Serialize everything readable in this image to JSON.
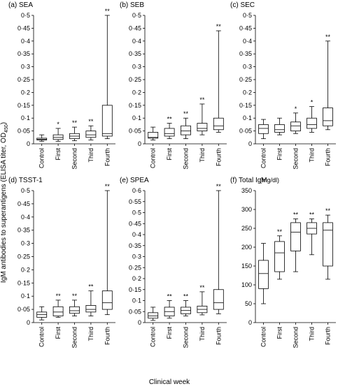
{
  "chart_data": [
    {
      "type": "box",
      "title": "(a) SEA",
      "categories": [
        "Control",
        "First",
        "Second",
        "Third",
        "Fourth"
      ],
      "boxes": [
        {
          "low": 0.01,
          "q1": 0.015,
          "median": 0.018,
          "q3": 0.022,
          "high": 0.035
        },
        {
          "low": 0.01,
          "q1": 0.017,
          "median": 0.025,
          "q3": 0.035,
          "high": 0.06
        },
        {
          "low": 0.012,
          "q1": 0.02,
          "median": 0.03,
          "q3": 0.04,
          "high": 0.065
        },
        {
          "low": 0.015,
          "q1": 0.025,
          "median": 0.035,
          "q3": 0.05,
          "high": 0.07
        },
        {
          "low": 0.02,
          "q1": 0.03,
          "median": 0.04,
          "q3": 0.15,
          "high": 0.5
        }
      ],
      "significance": [
        null,
        "*",
        "**",
        "**",
        "**"
      ],
      "ylim": [
        0,
        0.5
      ],
      "yticks": [
        0,
        {
          "value": 0.05,
          "label": "0·05"
        },
        {
          "value": 0.1,
          "label": "0·1"
        },
        {
          "value": 0.15,
          "label": "0·15"
        },
        {
          "value": 0.2,
          "label": "0·2"
        },
        {
          "value": 0.25,
          "label": "0·25"
        },
        {
          "value": 0.3,
          "label": "0·3"
        },
        {
          "value": 0.35,
          "label": "0·35"
        },
        {
          "value": 0.4,
          "label": "0·4"
        },
        {
          "value": 0.45,
          "label": "0·45"
        },
        {
          "value": 0.5,
          "label": "0·5"
        }
      ]
    },
    {
      "type": "box",
      "title": "(b) SEB",
      "categories": [
        "Control",
        "First",
        "Second",
        "Third",
        "Fourth"
      ],
      "boxes": [
        {
          "low": 0.015,
          "q1": 0.022,
          "median": 0.025,
          "q3": 0.045,
          "high": 0.065
        },
        {
          "low": 0.02,
          "q1": 0.03,
          "median": 0.04,
          "q3": 0.06,
          "high": 0.08
        },
        {
          "low": 0.02,
          "q1": 0.035,
          "median": 0.05,
          "q3": 0.07,
          "high": 0.1
        },
        {
          "low": 0.035,
          "q1": 0.05,
          "median": 0.06,
          "q3": 0.08,
          "high": 0.155
        },
        {
          "low": 0.045,
          "q1": 0.055,
          "median": 0.07,
          "q3": 0.1,
          "high": 0.44
        }
      ],
      "significance": [
        null,
        "**",
        "**",
        "**",
        "**"
      ],
      "ylim": [
        0,
        0.5
      ],
      "yticks": [
        0,
        {
          "value": 0.05,
          "label": "0·05"
        },
        {
          "value": 0.1,
          "label": "0·1"
        },
        {
          "value": 0.15,
          "label": "0·15"
        },
        {
          "value": 0.2,
          "label": "0·2"
        },
        {
          "value": 0.25,
          "label": "0·25"
        },
        {
          "value": 0.3,
          "label": "0·3"
        },
        {
          "value": 0.35,
          "label": "0·35"
        },
        {
          "value": 0.4,
          "label": "0·4"
        },
        {
          "value": 0.45,
          "label": "0·45"
        },
        {
          "value": 0.5,
          "label": "0·5"
        }
      ]
    },
    {
      "type": "box",
      "title": "(c) SEC",
      "categories": [
        "Control",
        "First",
        "Second",
        "Third",
        "Fourth"
      ],
      "boxes": [
        {
          "low": 0.02,
          "q1": 0.04,
          "median": 0.06,
          "q3": 0.075,
          "high": 0.095
        },
        {
          "low": 0.035,
          "q1": 0.045,
          "median": 0.055,
          "q3": 0.075,
          "high": 0.1
        },
        {
          "low": 0.04,
          "q1": 0.05,
          "median": 0.07,
          "q3": 0.085,
          "high": 0.12
        },
        {
          "low": 0.045,
          "q1": 0.06,
          "median": 0.075,
          "q3": 0.1,
          "high": 0.145
        },
        {
          "low": 0.055,
          "q1": 0.07,
          "median": 0.09,
          "q3": 0.14,
          "high": 0.4
        }
      ],
      "significance": [
        null,
        null,
        "*",
        "*",
        "**"
      ],
      "ylim": [
        0,
        0.5
      ],
      "yticks": [
        0,
        {
          "value": 0.05,
          "label": "0·05"
        },
        {
          "value": 0.1,
          "label": "0·1"
        },
        {
          "value": 0.15,
          "label": "0·15"
        },
        {
          "value": 0.2,
          "label": "0·2"
        },
        {
          "value": 0.25,
          "label": "0·25"
        },
        {
          "value": 0.3,
          "label": "0·3"
        },
        {
          "value": 0.35,
          "label": "0·35"
        },
        {
          "value": 0.4,
          "label": "0·4"
        },
        {
          "value": 0.45,
          "label": "0·45"
        },
        {
          "value": 0.5,
          "label": "0·5"
        }
      ]
    },
    {
      "type": "box",
      "title": "(d) TSST-1",
      "categories": [
        "Control",
        "First",
        "Second",
        "Third",
        "Fourth"
      ],
      "boxes": [
        {
          "low": 0.01,
          "q1": 0.02,
          "median": 0.03,
          "q3": 0.04,
          "high": 0.06
        },
        {
          "low": 0.02,
          "q1": 0.025,
          "median": 0.04,
          "q3": 0.06,
          "high": 0.085
        },
        {
          "low": 0.025,
          "q1": 0.035,
          "median": 0.045,
          "q3": 0.06,
          "high": 0.085
        },
        {
          "low": 0.025,
          "q1": 0.04,
          "median": 0.05,
          "q3": 0.065,
          "high": 0.12
        },
        {
          "low": 0.03,
          "q1": 0.05,
          "median": 0.075,
          "q3": 0.12,
          "high": 0.5
        }
      ],
      "significance": [
        null,
        "**",
        "**",
        "**",
        "**"
      ],
      "ylim": [
        0,
        0.5
      ],
      "yticks": [
        0,
        {
          "value": 0.05,
          "label": "0·05"
        },
        {
          "value": 0.1,
          "label": "0·1"
        },
        {
          "value": 0.15,
          "label": "0·15"
        },
        {
          "value": 0.2,
          "label": "0·2"
        },
        {
          "value": 0.25,
          "label": "0·25"
        },
        {
          "value": 0.3,
          "label": "0·3"
        },
        {
          "value": 0.35,
          "label": "0·35"
        },
        {
          "value": 0.4,
          "label": "0·4"
        },
        {
          "value": 0.45,
          "label": "0·45"
        },
        {
          "value": 0.5,
          "label": "0·5"
        }
      ]
    },
    {
      "type": "box",
      "title": "(e) SPEA",
      "categories": [
        "Control",
        "First",
        "Second",
        "Third",
        "Fourth"
      ],
      "boxes": [
        {
          "low": 0.01,
          "q1": 0.02,
          "median": 0.03,
          "q3": 0.045,
          "high": 0.07
        },
        {
          "low": 0.02,
          "q1": 0.03,
          "median": 0.05,
          "q3": 0.07,
          "high": 0.1
        },
        {
          "low": 0.03,
          "q1": 0.04,
          "median": 0.055,
          "q3": 0.07,
          "high": 0.1
        },
        {
          "low": 0.035,
          "q1": 0.045,
          "median": 0.06,
          "q3": 0.075,
          "high": 0.14
        },
        {
          "low": 0.04,
          "q1": 0.06,
          "median": 0.09,
          "q3": 0.15,
          "high": 0.6
        }
      ],
      "significance": [
        null,
        "**",
        "**",
        "**",
        "**"
      ],
      "ylim": [
        0,
        0.6
      ],
      "yticks": [
        0,
        {
          "value": 0.05,
          "label": "0·05"
        },
        {
          "value": 0.1,
          "label": "0·1"
        },
        {
          "value": 0.15,
          "label": "0·15"
        },
        {
          "value": 0.2,
          "label": "0·2"
        },
        {
          "value": 0.25,
          "label": "0·25"
        },
        {
          "value": 0.3,
          "label": "0·3"
        },
        {
          "value": 0.35,
          "label": "0·35"
        },
        {
          "value": 0.4,
          "label": "0·4"
        },
        {
          "value": 0.45,
          "label": "0·45"
        },
        {
          "value": 0.5,
          "label": "0·5"
        },
        {
          "value": 0.55,
          "label": "0·55"
        },
        {
          "value": 0.6,
          "label": "0·6"
        }
      ]
    },
    {
      "type": "box",
      "title": "(f) Total IgM",
      "unit": "(mg/dl)",
      "categories": [
        "Control",
        "First",
        "Second",
        "Third",
        "Fourth"
      ],
      "boxes": [
        {
          "low": 50,
          "q1": 90,
          "median": 130,
          "q3": 165,
          "high": 210
        },
        {
          "low": 115,
          "q1": 135,
          "median": 185,
          "q3": 215,
          "high": 230
        },
        {
          "low": 135,
          "q1": 190,
          "median": 240,
          "q3": 265,
          "high": 275
        },
        {
          "low": 180,
          "q1": 235,
          "median": 250,
          "q3": 265,
          "high": 275
        },
        {
          "low": 115,
          "q1": 150,
          "median": 245,
          "q3": 265,
          "high": 285
        }
      ],
      "significance": [
        null,
        "**",
        "**",
        "**",
        "**"
      ],
      "ylim": [
        0,
        350
      ],
      "yticks": [
        0,
        50,
        100,
        150,
        200,
        250,
        300,
        350
      ]
    }
  ],
  "y_label": {
    "text": "IgM antibodies to superantigens (ELISA titer, OD",
    "subscript": "450",
    "suffix": ")"
  },
  "x_label": "Clinical week"
}
